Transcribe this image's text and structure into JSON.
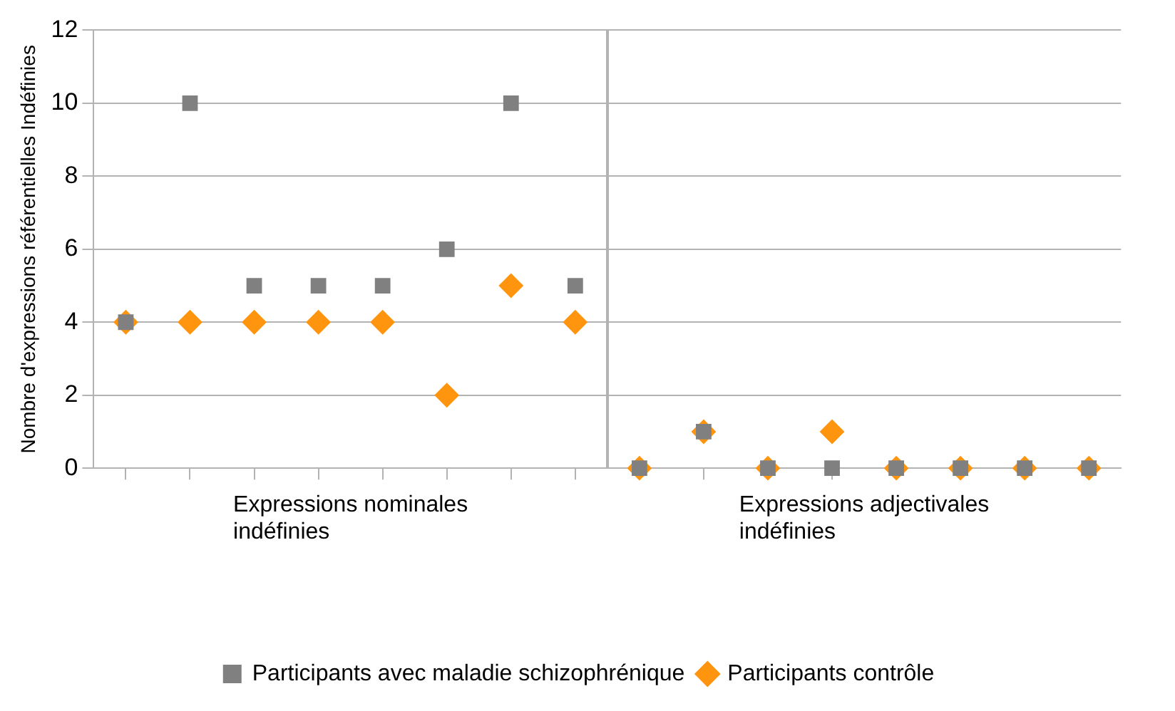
{
  "chart_data": {
    "type": "scatter",
    "ylabel": "Nombre d'expressions référentielles Indéfinies",
    "categories": [
      null,
      null,
      null,
      null,
      null,
      null,
      null,
      null,
      null,
      null,
      null,
      null,
      null,
      null,
      null,
      null
    ],
    "ylim": [
      0,
      12
    ],
    "yticks": [
      0,
      2,
      4,
      6,
      8,
      10,
      12
    ],
    "series": [
      {
        "name": "Participants avec maladie schizophrénique",
        "color": "#808080",
        "marker": "square",
        "values": [
          4,
          10,
          5,
          5,
          5,
          6,
          10,
          5,
          0,
          1,
          0,
          0,
          0,
          0,
          0,
          0
        ]
      },
      {
        "name": "Participants contrôle",
        "color": "#ff950e",
        "marker": "diamond",
        "values": [
          4,
          4,
          4,
          4,
          4,
          2,
          5,
          4,
          0,
          1,
          0,
          1,
          0,
          0,
          0,
          0
        ]
      }
    ],
    "annotations": [
      "Expressions nominales\nindéfinies",
      "Expressions adjectivales\nindéfinies"
    ],
    "grid": "y",
    "legend": "bottom"
  }
}
